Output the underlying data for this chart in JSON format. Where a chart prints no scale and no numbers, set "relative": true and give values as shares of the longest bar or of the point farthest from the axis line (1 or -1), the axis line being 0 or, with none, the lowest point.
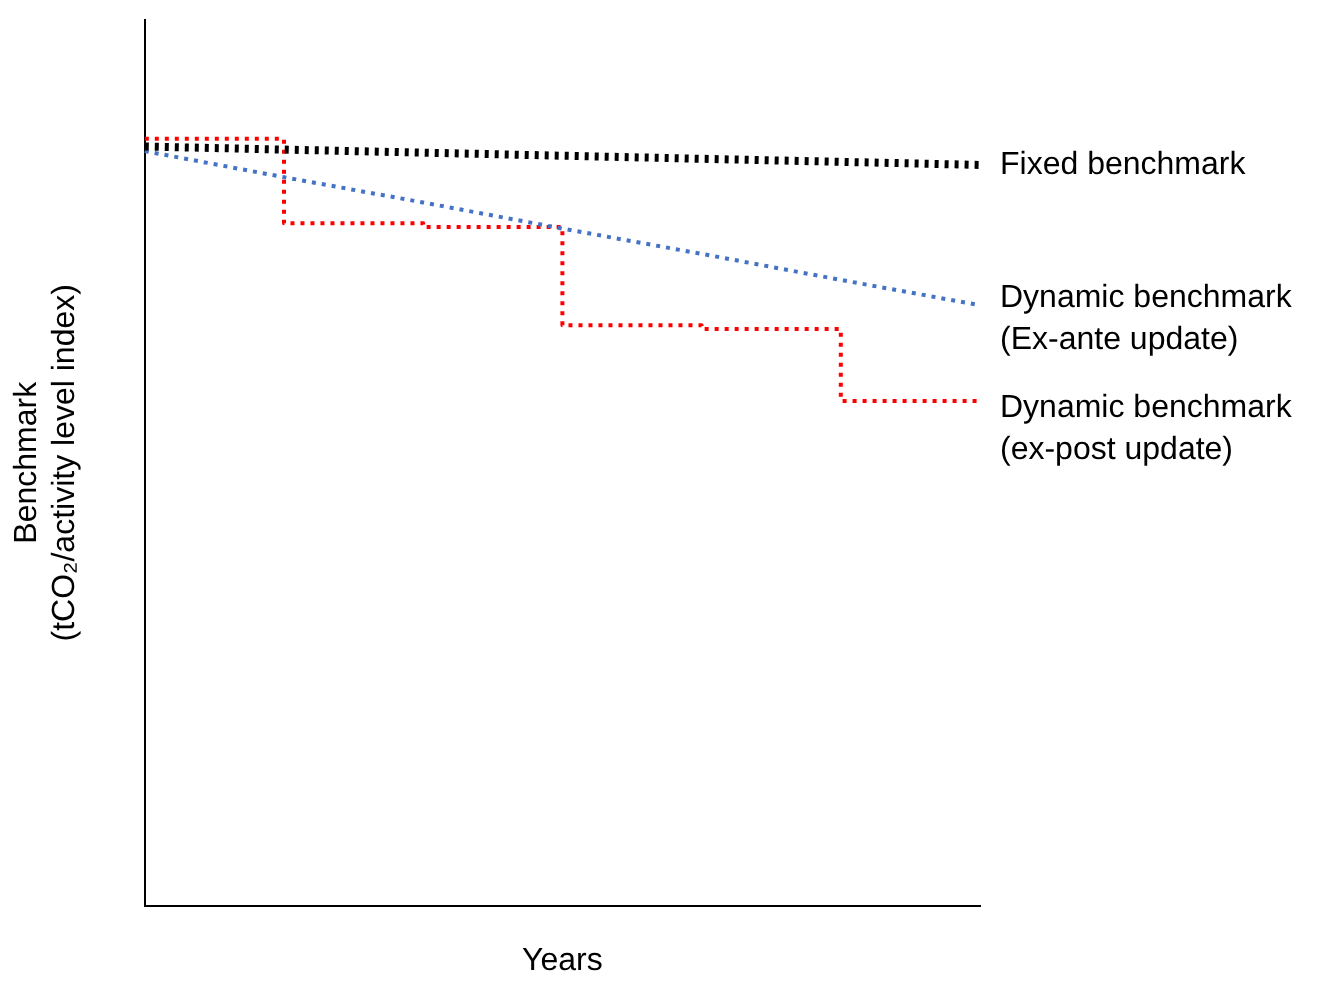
{
  "chart_data": {
    "type": "line",
    "relative": true,
    "xlabel": "Years",
    "ylabel": "Benchmark\n(tCO₂/activity level index)",
    "categories": [
      null,
      null,
      null,
      null,
      null,
      null,
      null
    ],
    "legend": false,
    "marker": "none",
    "grid": false,
    "tick_labels": false,
    "series": [
      {
        "name": "Fixed benchmark",
        "color": "#000000",
        "line_style": "dotted",
        "values": [
          0.99,
          0.986,
          0.982,
          0.978,
          0.974,
          0.97,
          0.966
        ]
      },
      {
        "name": "Dynamic benchmark\n(Ex-ante update)",
        "color": "#4472c4",
        "line_style": "dotted",
        "values": [
          0.984,
          0.95,
          0.917,
          0.883,
          0.85,
          0.816,
          0.783
        ]
      },
      {
        "name": "Dynamic benchmark\n(ex-post update)",
        "type": "step",
        "color": "#ff0000",
        "line_style": "dotted",
        "values": [
          1,
          0.89,
          0.885,
          0.757,
          0.752,
          0.658,
          0.658
        ]
      }
    ]
  }
}
